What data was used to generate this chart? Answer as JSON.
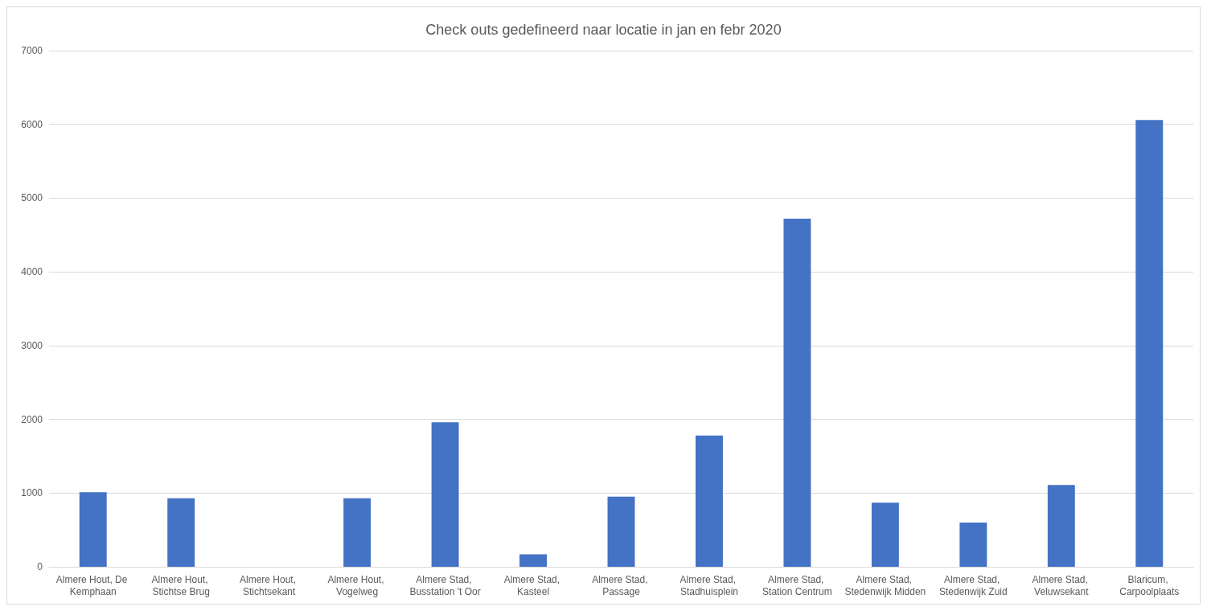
{
  "chart_data": {
    "type": "bar",
    "title": "Check outs gedefineerd naar locatie in jan en febr 2020",
    "categories": [
      "Almere Hout, De Kemphaan",
      "Almere Hout, Stichtse Brug",
      "Almere Hout, Stichtsekant",
      "Almere Hout, Vogelweg",
      "Almere Stad, Busstation 't Oor",
      "Almere Stad, Kasteel",
      "Almere Stad, Passage",
      "Almere Stad, Stadhuisplein",
      "Almere Stad, Station Centrum",
      "Almere Stad, Stedenwijk Midden",
      "Almere Stad, Stedenwijk Zuid",
      "Almere Stad, Veluwsekant",
      "Blaricum, Carpoolplaats"
    ],
    "values": [
      1010,
      930,
      0,
      930,
      1960,
      170,
      950,
      1780,
      4720,
      870,
      600,
      1110,
      6060
    ],
    "color": "#4472c4",
    "ylim": [
      0,
      7000
    ],
    "yticks": [
      0,
      1000,
      2000,
      3000,
      4000,
      5000,
      6000,
      7000
    ],
    "grid": "y"
  }
}
